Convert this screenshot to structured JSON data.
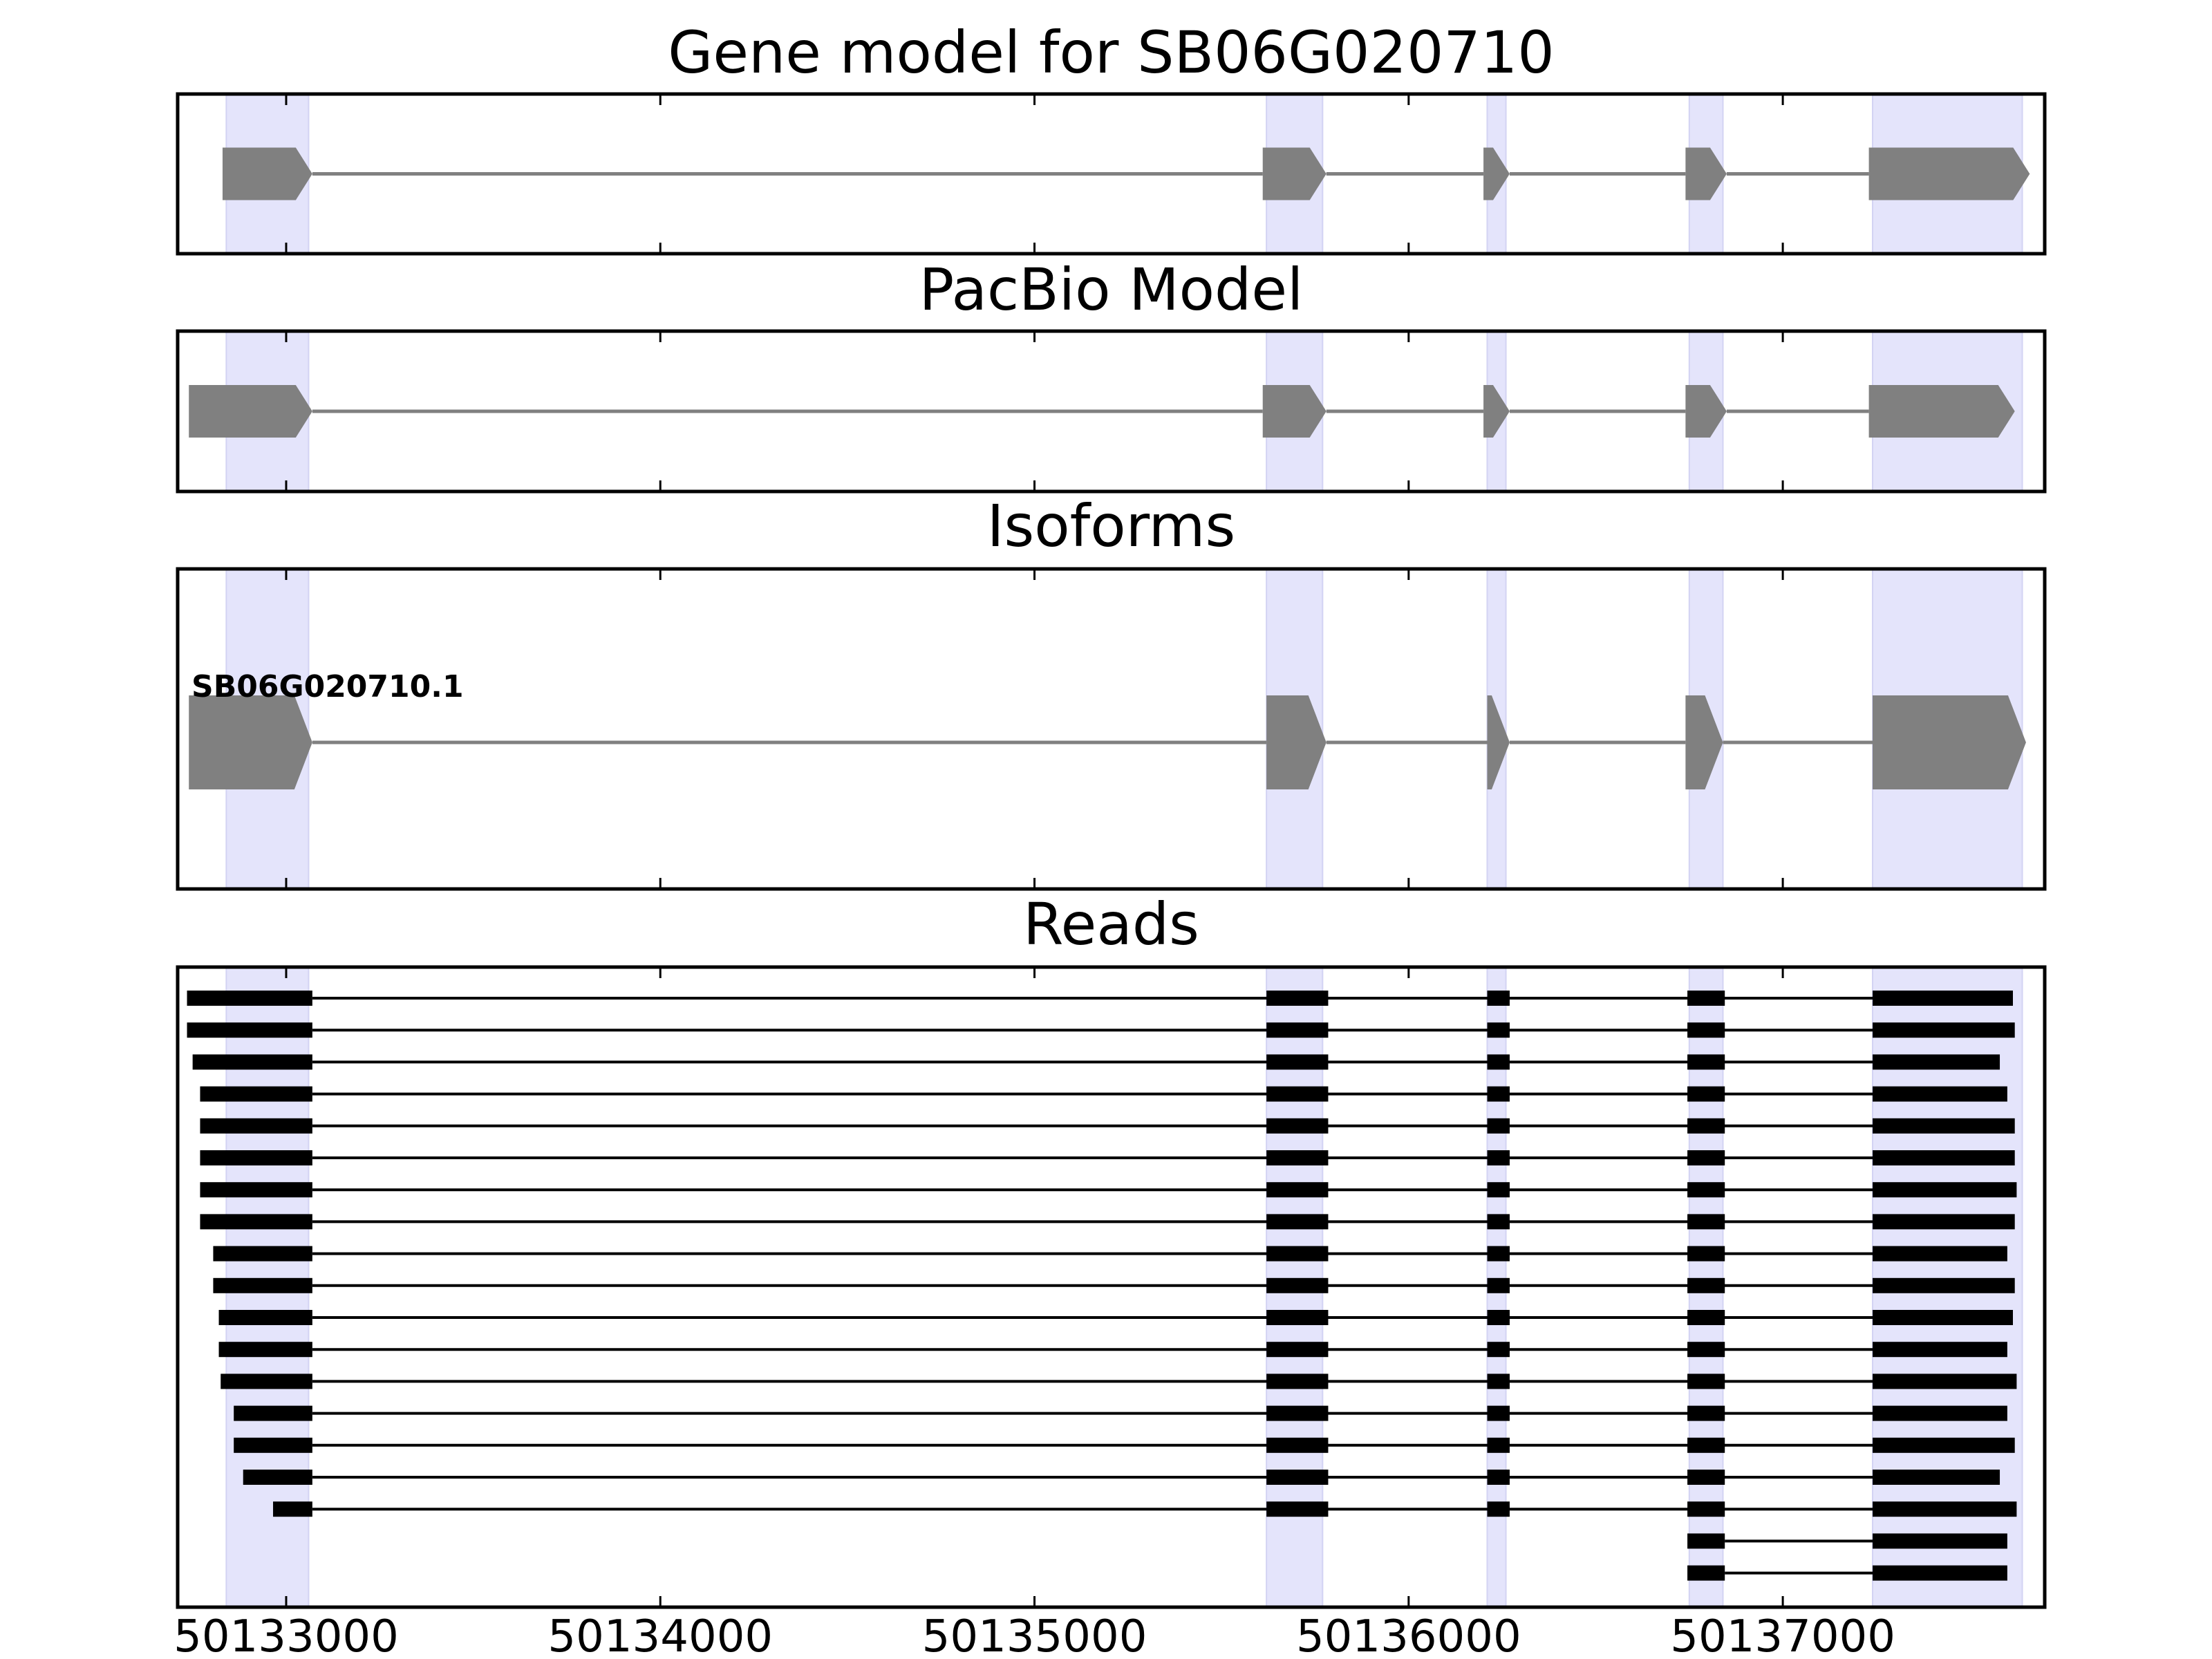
{
  "chart_data": {
    "type": "gene-structure",
    "xlim": [
      50132710,
      50137700
    ],
    "x_ticks": [
      50133000,
      50134000,
      50135000,
      50136000,
      50137000
    ],
    "x_tick_labels": [
      "50133000",
      "50134000",
      "50135000",
      "50136000",
      "50137000"
    ],
    "colors": {
      "shade": "#e4e4fb",
      "exon": "#808080",
      "intron": "#808080",
      "read": "#000000",
      "axis": "#000000"
    },
    "highlighted_regions": [
      [
        50132840,
        50133060
      ],
      [
        50135620,
        50135770
      ],
      [
        50136210,
        50136260
      ],
      [
        50136750,
        50136840
      ],
      [
        50137240,
        50137640
      ]
    ],
    "panels": [
      {
        "title": "Gene model for SB06G020710",
        "kind": "model",
        "models": [
          {
            "label": "",
            "strand": "+",
            "exons": [
              [
                50132830,
                50133070
              ],
              [
                50135610,
                50135780
              ],
              [
                50136200,
                50136270
              ],
              [
                50136740,
                50136850
              ],
              [
                50137230,
                50137660
              ]
            ]
          }
        ]
      },
      {
        "title": "PacBio Model",
        "kind": "model",
        "models": [
          {
            "label": "",
            "strand": "+",
            "exons": [
              [
                50132740,
                50133070
              ],
              [
                50135610,
                50135780
              ],
              [
                50136200,
                50136270
              ],
              [
                50136740,
                50136850
              ],
              [
                50137230,
                50137620
              ]
            ]
          }
        ]
      },
      {
        "title": "Isoforms",
        "kind": "model",
        "models": [
          {
            "label": "SB06G020710.1",
            "strand": "+",
            "exons": [
              [
                50132740,
                50133070
              ],
              [
                50135620,
                50135780
              ],
              [
                50136210,
                50136270
              ],
              [
                50136740,
                50136840
              ],
              [
                50137240,
                50137650
              ]
            ]
          }
        ]
      },
      {
        "title": "Reads",
        "kind": "reads",
        "reads": [
          [
            [
              50132735,
              50133070
            ],
            [
              50135620,
              50135785
            ],
            [
              50136210,
              50136270
            ],
            [
              50136745,
              50136845
            ],
            [
              50137240,
              50137615
            ]
          ],
          [
            [
              50132735,
              50133070
            ],
            [
              50135620,
              50135785
            ],
            [
              50136210,
              50136270
            ],
            [
              50136745,
              50136845
            ],
            [
              50137240,
              50137620
            ]
          ],
          [
            [
              50132750,
              50133070
            ],
            [
              50135620,
              50135785
            ],
            [
              50136210,
              50136270
            ],
            [
              50136745,
              50136845
            ],
            [
              50137240,
              50137580
            ]
          ],
          [
            [
              50132770,
              50133070
            ],
            [
              50135620,
              50135785
            ],
            [
              50136210,
              50136270
            ],
            [
              50136745,
              50136845
            ],
            [
              50137240,
              50137600
            ]
          ],
          [
            [
              50132770,
              50133070
            ],
            [
              50135620,
              50135785
            ],
            [
              50136210,
              50136270
            ],
            [
              50136745,
              50136845
            ],
            [
              50137240,
              50137620
            ]
          ],
          [
            [
              50132770,
              50133070
            ],
            [
              50135620,
              50135785
            ],
            [
              50136210,
              50136270
            ],
            [
              50136745,
              50136845
            ],
            [
              50137240,
              50137620
            ]
          ],
          [
            [
              50132770,
              50133070
            ],
            [
              50135620,
              50135785
            ],
            [
              50136210,
              50136270
            ],
            [
              50136745,
              50136845
            ],
            [
              50137240,
              50137625
            ]
          ],
          [
            [
              50132770,
              50133070
            ],
            [
              50135620,
              50135785
            ],
            [
              50136210,
              50136270
            ],
            [
              50136745,
              50136845
            ],
            [
              50137240,
              50137620
            ]
          ],
          [
            [
              50132805,
              50133070
            ],
            [
              50135620,
              50135785
            ],
            [
              50136210,
              50136270
            ],
            [
              50136745,
              50136845
            ],
            [
              50137240,
              50137600
            ]
          ],
          [
            [
              50132805,
              50133070
            ],
            [
              50135620,
              50135785
            ],
            [
              50136210,
              50136270
            ],
            [
              50136745,
              50136845
            ],
            [
              50137240,
              50137620
            ]
          ],
          [
            [
              50132820,
              50133070
            ],
            [
              50135620,
              50135785
            ],
            [
              50136210,
              50136270
            ],
            [
              50136745,
              50136845
            ],
            [
              50137240,
              50137615
            ]
          ],
          [
            [
              50132820,
              50133070
            ],
            [
              50135620,
              50135785
            ],
            [
              50136210,
              50136270
            ],
            [
              50136745,
              50136845
            ],
            [
              50137240,
              50137600
            ]
          ],
          [
            [
              50132825,
              50133070
            ],
            [
              50135620,
              50135785
            ],
            [
              50136210,
              50136270
            ],
            [
              50136745,
              50136845
            ],
            [
              50137240,
              50137625
            ]
          ],
          [
            [
              50132860,
              50133070
            ],
            [
              50135620,
              50135785
            ],
            [
              50136210,
              50136270
            ],
            [
              50136745,
              50136845
            ],
            [
              50137240,
              50137600
            ]
          ],
          [
            [
              50132860,
              50133070
            ],
            [
              50135620,
              50135785
            ],
            [
              50136210,
              50136270
            ],
            [
              50136745,
              50136845
            ],
            [
              50137240,
              50137620
            ]
          ],
          [
            [
              50132885,
              50133070
            ],
            [
              50135620,
              50135785
            ],
            [
              50136210,
              50136270
            ],
            [
              50136745,
              50136845
            ],
            [
              50137240,
              50137580
            ]
          ],
          [
            [
              50132965,
              50133070
            ],
            [
              50135620,
              50135785
            ],
            [
              50136210,
              50136270
            ],
            [
              50136745,
              50136845
            ],
            [
              50137240,
              50137625
            ]
          ],
          [
            [
              50136745,
              50136845
            ],
            [
              50137240,
              50137600
            ]
          ],
          [
            [
              50136745,
              50136845
            ],
            [
              50137240,
              50137600
            ]
          ]
        ]
      }
    ]
  }
}
